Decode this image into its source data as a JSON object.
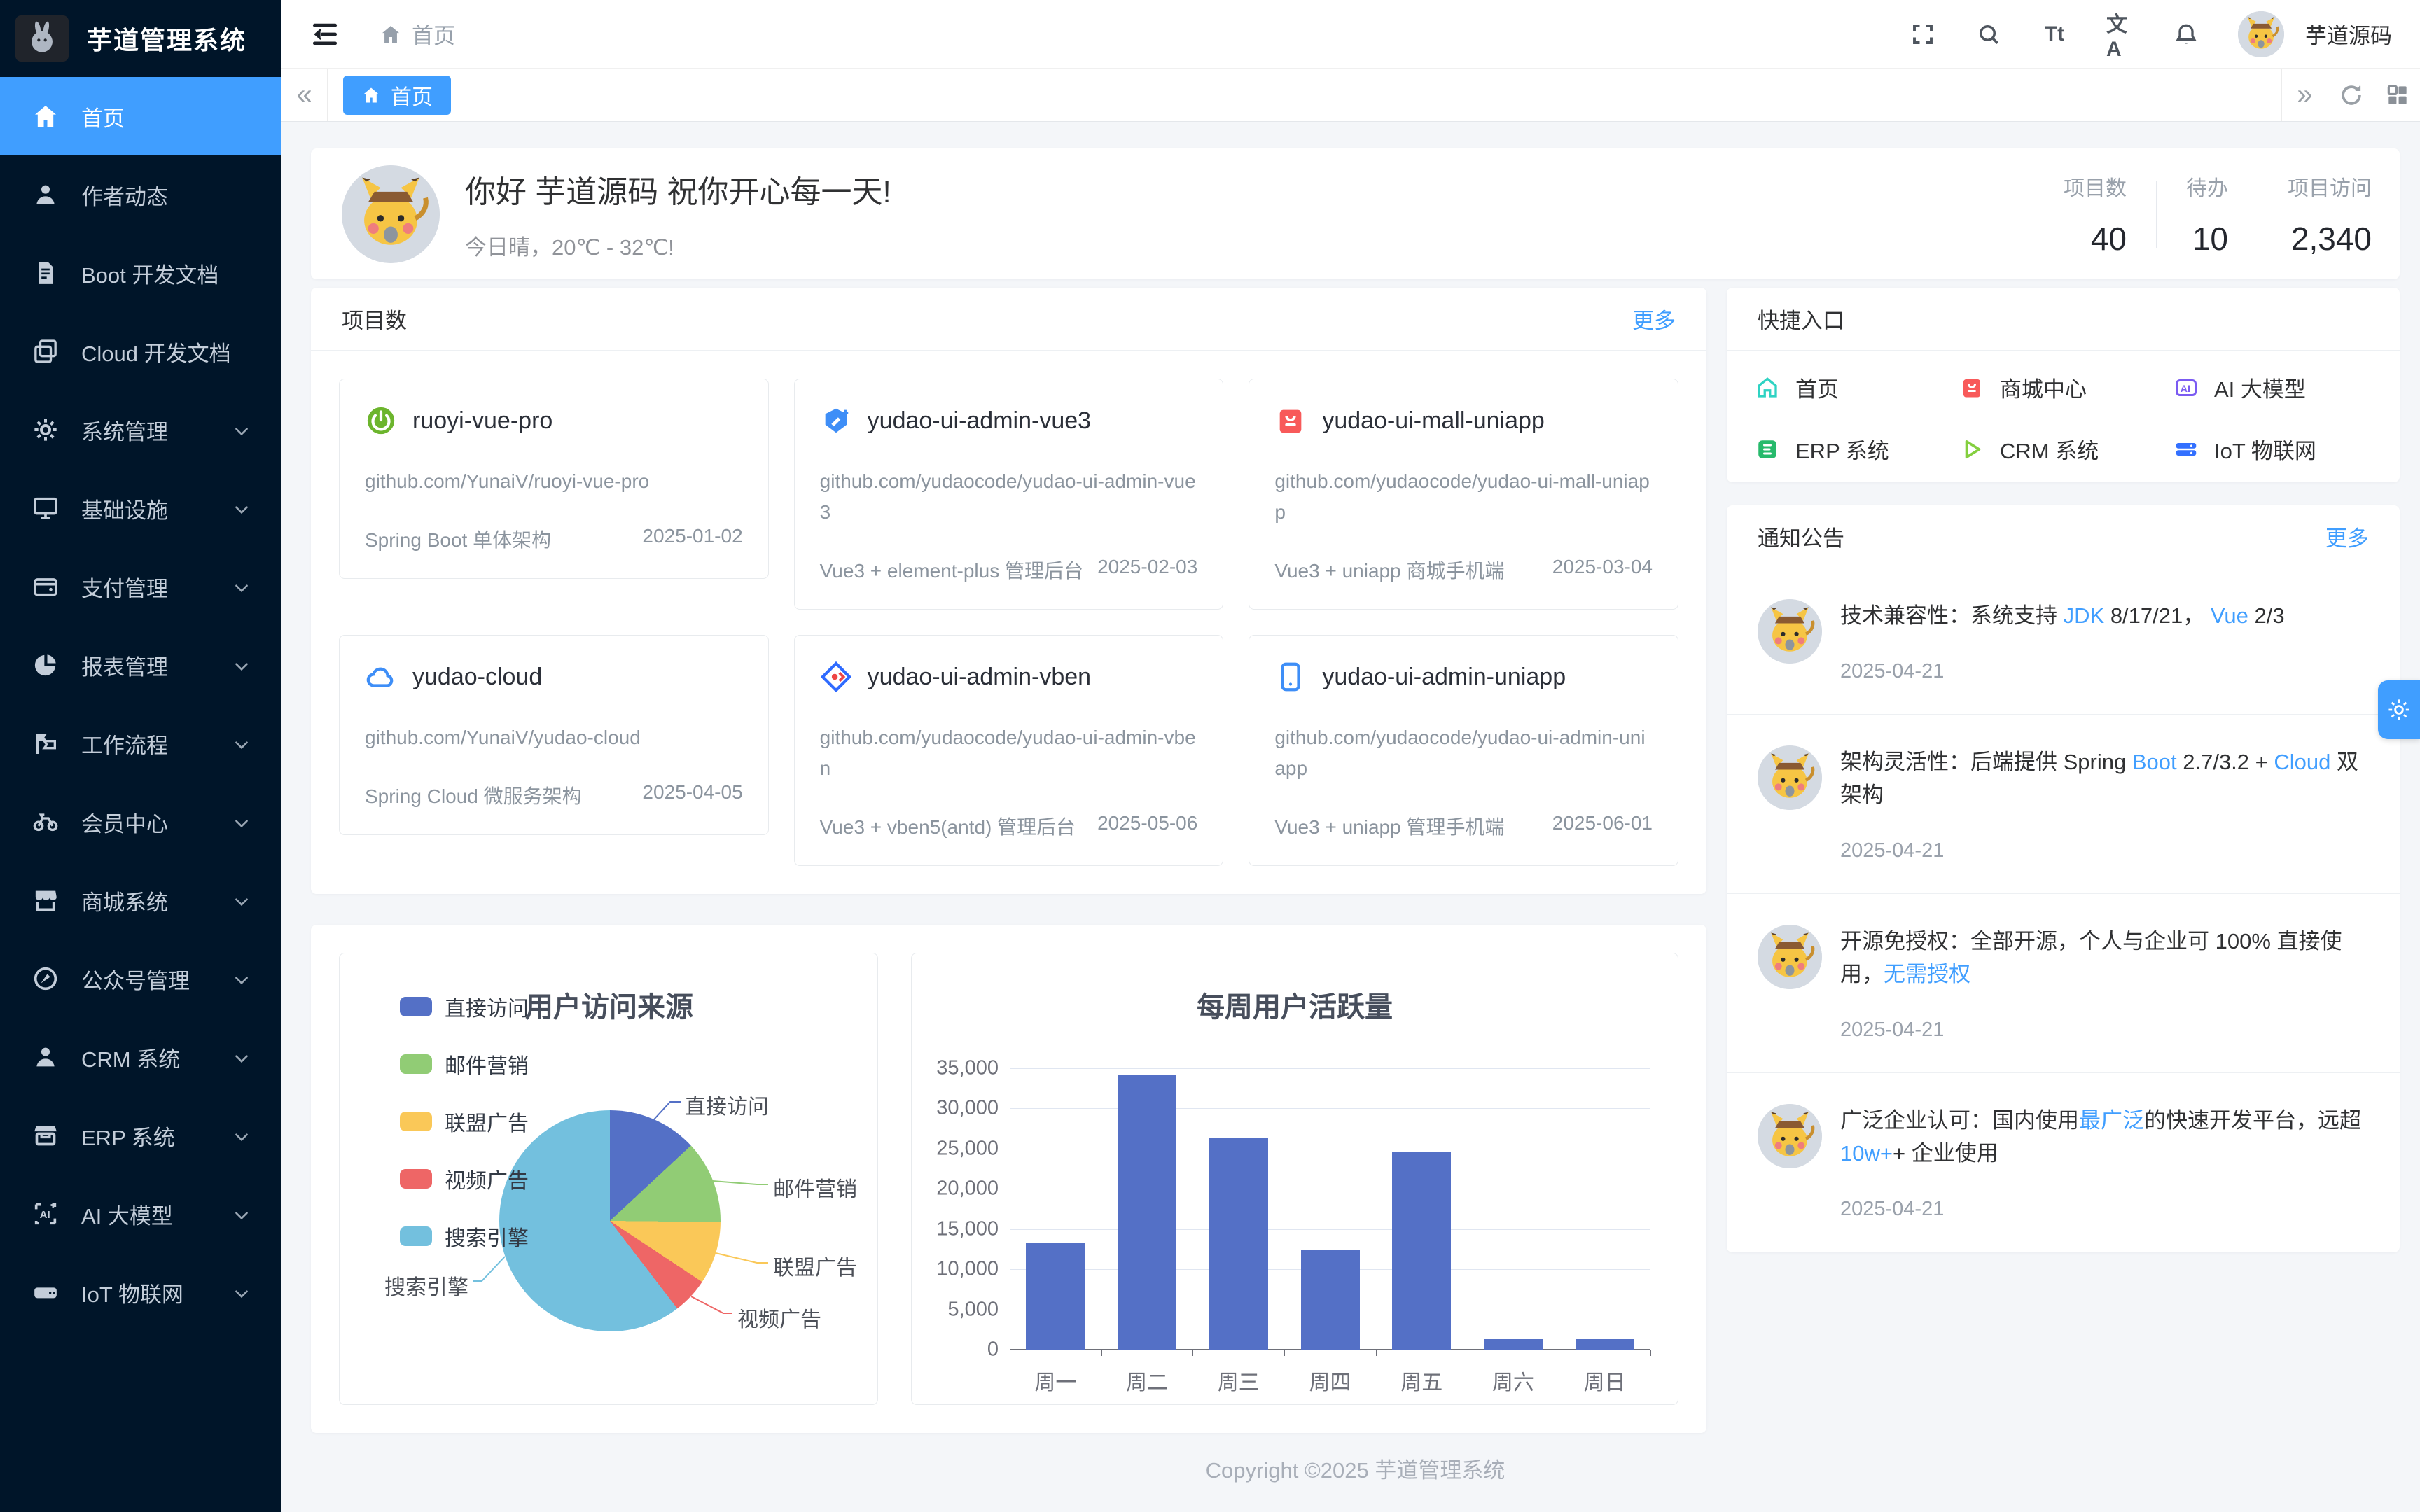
{
  "app": {
    "name": "芋道管理系统"
  },
  "header": {
    "breadcrumb_home": "首页",
    "username": "芋道源码",
    "font_size_glyph": "Tt",
    "language_glyph": "文A"
  },
  "tabbar": {
    "active_tab": "首页"
  },
  "sidebar": {
    "items": [
      {
        "label": "首页",
        "icon": "home-icon",
        "active": true,
        "expandable": false
      },
      {
        "label": "作者动态",
        "icon": "user-icon",
        "active": false,
        "expandable": false
      },
      {
        "label": "Boot 开发文档",
        "icon": "document-icon",
        "active": false,
        "expandable": false
      },
      {
        "label": "Cloud 开发文档",
        "icon": "documents-icon",
        "active": false,
        "expandable": false
      },
      {
        "label": "系统管理",
        "icon": "gear-icon",
        "active": false,
        "expandable": true
      },
      {
        "label": "基础设施",
        "icon": "monitor-icon",
        "active": false,
        "expandable": true
      },
      {
        "label": "支付管理",
        "icon": "wallet-icon",
        "active": false,
        "expandable": true
      },
      {
        "label": "报表管理",
        "icon": "pie-icon",
        "active": false,
        "expandable": true
      },
      {
        "label": "工作流程",
        "icon": "workflow-icon",
        "active": false,
        "expandable": true
      },
      {
        "label": "会员中心",
        "icon": "bicycle-icon",
        "active": false,
        "expandable": true
      },
      {
        "label": "商城系统",
        "icon": "shop-icon",
        "active": false,
        "expandable": true
      },
      {
        "label": "公众号管理",
        "icon": "compass-icon",
        "active": false,
        "expandable": true
      },
      {
        "label": "CRM 系统",
        "icon": "person-icon",
        "active": false,
        "expandable": true
      },
      {
        "label": "ERP 系统",
        "icon": "store-icon",
        "active": false,
        "expandable": true
      },
      {
        "label": "AI 大模型",
        "icon": "ai-icon",
        "active": false,
        "expandable": true
      },
      {
        "label": "IoT 物联网",
        "icon": "server-icon",
        "active": false,
        "expandable": true
      }
    ]
  },
  "welcome": {
    "greeting": "你好 芋道源码 祝你开心每一天!",
    "weather": "今日晴，20℃ - 32℃!",
    "stats": [
      {
        "label": "项目数",
        "value": "40"
      },
      {
        "label": "待办",
        "value": "10"
      },
      {
        "label": "项目访问",
        "value": "2,340"
      }
    ]
  },
  "projects": {
    "title": "项目数",
    "more": "更多",
    "cards": [
      {
        "name": "ruoyi-vue-pro",
        "icon": "spring-icon",
        "url": "github.com/YunaiV/ruoyi-vue-pro",
        "desc": "Spring Boot 单体架构",
        "date": "2025-01-02"
      },
      {
        "name": "yudao-ui-admin-vue3",
        "icon": "vue-icon",
        "url": "github.com/yudaocode/yudao-ui-admin-vue3",
        "desc": "Vue3 + element-plus 管理后台",
        "date": "2025-02-03"
      },
      {
        "name": "yudao-ui-mall-uniapp",
        "icon": "mall-bag-icon",
        "url": "github.com/yudaocode/yudao-ui-mall-uniapp",
        "desc": "Vue3 + uniapp 商城手机端",
        "date": "2025-03-04"
      },
      {
        "name": "yudao-cloud",
        "icon": "cloud-icon",
        "url": "github.com/YunaiV/yudao-cloud",
        "desc": "Spring Cloud 微服务架构",
        "date": "2025-04-05"
      },
      {
        "name": "yudao-ui-admin-vben",
        "icon": "vben-icon",
        "url": "github.com/yudaocode/yudao-ui-admin-vben",
        "desc": "Vue3 + vben5(antd) 管理后台",
        "date": "2025-05-06"
      },
      {
        "name": "yudao-ui-admin-uniapp",
        "icon": "uniapp-phone-icon",
        "url": "github.com/yudaocode/yudao-ui-admin-uniapp",
        "desc": "Vue3 + uniapp 管理手机端",
        "date": "2025-06-01"
      }
    ]
  },
  "shortcuts": {
    "title": "快捷入口",
    "items": [
      {
        "label": "首页",
        "icon": "home-outline-icon",
        "color": "#2fd3c3"
      },
      {
        "label": "商城中心",
        "icon": "mall-bag-icon",
        "color": "#fa5c5c"
      },
      {
        "label": "AI 大模型",
        "icon": "ai-badge-icon",
        "color": "#7b5bf2"
      },
      {
        "label": "ERP 系统",
        "icon": "erp-badge-icon",
        "color": "#27ba6c"
      },
      {
        "label": "CRM 系统",
        "icon": "crm-triangle-icon",
        "color": "#84cf3f"
      },
      {
        "label": "IoT 物联网",
        "icon": "iot-server-icon",
        "color": "#3370ff"
      }
    ]
  },
  "notices": {
    "title": "通知公告",
    "more": "更多",
    "items": [
      {
        "segments": [
          {
            "text": "技术兼容性：系统支持 "
          },
          {
            "text": "JDK",
            "highlight": true
          },
          {
            "text": " 8/17/21， "
          },
          {
            "text": "Vue",
            "highlight": true
          },
          {
            "text": " 2/3"
          }
        ],
        "date": "2025-04-21"
      },
      {
        "segments": [
          {
            "text": "架构灵活性：后端提供 Spring "
          },
          {
            "text": "Boot",
            "highlight": true
          },
          {
            "text": " 2.7/3.2 + "
          },
          {
            "text": "Cloud",
            "highlight": true
          },
          {
            "text": " 双架构"
          }
        ],
        "date": "2025-04-21"
      },
      {
        "segments": [
          {
            "text": "开源免授权：全部开源，个人与企业可 100% 直接使用，"
          },
          {
            "text": "无需授权",
            "highlight": true
          }
        ],
        "date": "2025-04-21"
      },
      {
        "segments": [
          {
            "text": "广泛企业认可：国内使用"
          },
          {
            "text": "最广泛",
            "highlight": true
          },
          {
            "text": "的快速开发平台，远超 "
          },
          {
            "text": "10w+",
            "highlight": true
          },
          {
            "text": "+ 企业使用"
          }
        ],
        "date": "2025-04-21"
      }
    ]
  },
  "chart_data": [
    {
      "type": "pie",
      "title": "用户访问来源",
      "legend_position": "left",
      "labels": [
        "直接访问",
        "邮件营销",
        "联盟广告",
        "视频广告",
        "搜索引擎"
      ],
      "values": [
        335,
        310,
        234,
        135,
        1548
      ],
      "colors": [
        "#5470c6",
        "#91cc75",
        "#fac858",
        "#ee6666",
        "#73c0de"
      ]
    },
    {
      "type": "bar",
      "title": "每周用户活跃量",
      "categories": [
        "周一",
        "周二",
        "周三",
        "周四",
        "周五",
        "周六",
        "周日"
      ],
      "values": [
        13253,
        34235,
        26321,
        12340,
        24643,
        1322,
        1324
      ],
      "ylim": [
        0,
        35000
      ],
      "ytick_step": 5000,
      "bar_color": "#5470c6",
      "grid": true,
      "legend_position": "none"
    }
  ],
  "floating": {
    "settings_button": "settings"
  },
  "footer": {
    "copyright": "Copyright ©2025 芋道管理系统"
  }
}
